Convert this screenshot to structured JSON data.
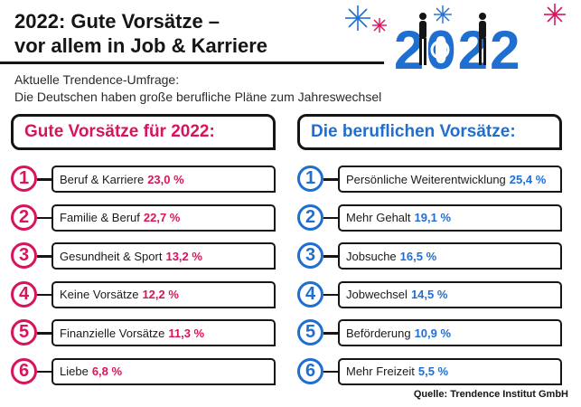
{
  "header": {
    "title_line1": "2022: Gute Vorsätze –",
    "title_line2": "vor allem in Job & Karriere",
    "subtitle_line1": "Aktuelle Trendence-Umfrage:",
    "subtitle_line2": "Die Deutschen haben große berufliche Pläne zum Jahreswechsel"
  },
  "logo": {
    "year": "2022",
    "color": "#1f6fd1",
    "firework_colors": [
      "#1f6fd1",
      "#d8145d"
    ]
  },
  "colors": {
    "pink": "#d8145d",
    "blue": "#1f6fd1",
    "dark": "#151515"
  },
  "chart_data": [
    {
      "type": "table",
      "title": "Gute Vorsätze für 2022:",
      "rows": [
        {
          "rank": "1",
          "label": "Beruf & Karriere",
          "value": "23,0 %"
        },
        {
          "rank": "2",
          "label": "Familie & Beruf",
          "value": "22,7 %"
        },
        {
          "rank": "3",
          "label": "Gesundheit & Sport",
          "value": "13,2 %"
        },
        {
          "rank": "4",
          "label": "Keine Vorsätze",
          "value": "12,2 %"
        },
        {
          "rank": "5",
          "label": "Finanzielle Vorsätze",
          "value": "11,3 %"
        },
        {
          "rank": "6",
          "label": "Liebe",
          "value": "6,8 %"
        }
      ]
    },
    {
      "type": "table",
      "title": "Die beruflichen Vorsätze:",
      "rows": [
        {
          "rank": "1",
          "label": "Persönliche Weiterentwicklung",
          "value": "25,4 %"
        },
        {
          "rank": "2",
          "label": "Mehr Gehalt",
          "value": "19,1 %"
        },
        {
          "rank": "3",
          "label": "Jobsuche",
          "value": "16,5 %"
        },
        {
          "rank": "4",
          "label": "Jobwechsel",
          "value": "14,5 %"
        },
        {
          "rank": "5",
          "label": "Beförderung",
          "value": "10,9 %"
        },
        {
          "rank": "6",
          "label": "Mehr Freizeit",
          "value": "5,5 %"
        }
      ]
    }
  ],
  "footer": {
    "source": "Quelle: Trendence Institut GmbH"
  }
}
